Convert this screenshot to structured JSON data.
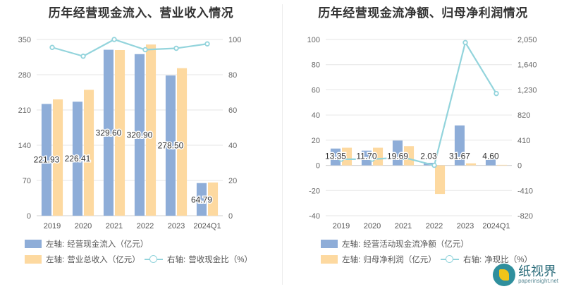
{
  "charts": {
    "left": {
      "title": "历年经营现金流入、营业收入情况",
      "legend": [
        {
          "axis": "左轴:",
          "label": "经营现金流入（亿元）",
          "color": "#8eadd8",
          "kind": "bar"
        },
        {
          "axis": "左轴:",
          "label": "营业总收入（亿元）",
          "color": "#fdd9a0",
          "kind": "bar"
        },
        {
          "axis": "右轴:",
          "label": "营收现金比（%）",
          "color": "#93d4dc",
          "kind": "line"
        }
      ]
    },
    "right": {
      "title": "历年经营现金流净额、归母净利润情况",
      "legend": [
        {
          "axis": "左轴:",
          "label": "经营活动现金流净额（亿元）",
          "color": "#8eadd8",
          "kind": "bar"
        },
        {
          "axis": "左轴:",
          "label": "归母净利润（亿元）",
          "color": "#fdd9a0",
          "kind": "bar"
        },
        {
          "axis": "右轴:",
          "label": "净现比（%）",
          "color": "#93d4dc",
          "kind": "line"
        }
      ]
    }
  },
  "chart_data": [
    {
      "type": "bar",
      "title": "历年经营现金流入、营业收入情况",
      "categories": [
        "2019",
        "2020",
        "2021",
        "2022",
        "2023",
        "2024Q1"
      ],
      "ylim": [
        0,
        350
      ],
      "y_ticks": [
        "0",
        "70",
        "140",
        "210",
        "280",
        "350"
      ],
      "y2lim": [
        0,
        100
      ],
      "y2_ticks": [
        "0",
        "20",
        "40",
        "60",
        "80",
        "100"
      ],
      "series": [
        {
          "name": "经营现金流入（亿元）",
          "axis": "left",
          "kind": "bar",
          "color": "#8eadd8",
          "values": [
            221.93,
            226.41,
            329.6,
            320.9,
            278.5,
            64.79
          ],
          "labels": [
            "221.93",
            "226.41",
            "329.60",
            "320.90",
            "278.50",
            "64.79"
          ]
        },
        {
          "name": "营业总收入（亿元）",
          "axis": "left",
          "kind": "bar",
          "color": "#fdd9a0",
          "values": [
            231,
            250,
            329,
            340,
            293,
            66
          ]
        },
        {
          "name": "营收现金比（%）",
          "axis": "right",
          "kind": "line",
          "color": "#93d4dc",
          "values": [
            95.5,
            90.5,
            100,
            94.2,
            95,
            97.5
          ]
        }
      ],
      "grid": true,
      "legend_position": "bottom"
    },
    {
      "type": "bar",
      "title": "历年经营现金流净额、归母净利润情况",
      "categories": [
        "2019",
        "2020",
        "2021",
        "2022",
        "2023",
        "2024Q1"
      ],
      "ylim": [
        -40,
        100
      ],
      "y_ticks": [
        "-40",
        "-20",
        "0",
        "20",
        "40",
        "60",
        "80",
        "100"
      ],
      "y2lim": [
        -820,
        2050
      ],
      "y2_ticks": [
        "-820",
        "-410",
        "0",
        "410",
        "820",
        "1,230",
        "1,640",
        "2,050"
      ],
      "series": [
        {
          "name": "经营活动现金流净额（亿元）",
          "axis": "left",
          "kind": "bar",
          "color": "#8eadd8",
          "values": [
            13.35,
            11.7,
            19.69,
            2.03,
            31.67,
            4.6
          ],
          "labels": [
            "13.35",
            "11.70",
            "19.69",
            "2.03",
            "31.67",
            "4.60"
          ]
        },
        {
          "name": "归母净利润（亿元）",
          "axis": "left",
          "kind": "bar",
          "color": "#fdd9a0",
          "values": [
            14,
            14,
            15.3,
            -22.7,
            1.6,
            0.4
          ]
        },
        {
          "name": "净现比（%）",
          "axis": "right",
          "kind": "line",
          "color": "#93d4dc",
          "values": [
            100,
            100,
            130,
            0,
            2000,
            1170
          ]
        }
      ],
      "grid": true,
      "legend_position": "bottom"
    }
  ],
  "watermark": {
    "cn": "纸视界",
    "en": "paperinsight.net"
  }
}
